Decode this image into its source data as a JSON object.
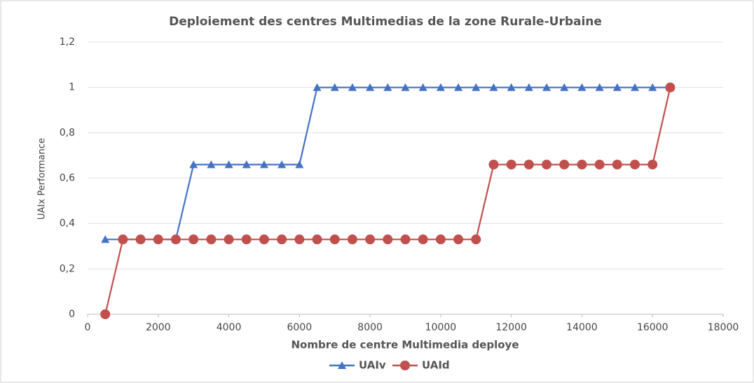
{
  "chart_data": {
    "type": "line",
    "title": "Deploiement des centres Multimedias de la zone Rurale-Urbaine",
    "xlabel": "Nombre de centre Multimedia deploye",
    "ylabel": "UAIx Performance",
    "x": [
      500,
      1000,
      1500,
      2000,
      2500,
      3000,
      3500,
      4000,
      4500,
      5000,
      5500,
      6000,
      6500,
      7000,
      7500,
      8000,
      8500,
      9000,
      9500,
      10000,
      10500,
      11000,
      11500,
      12000,
      12500,
      13000,
      13500,
      14000,
      14500,
      15000,
      15500,
      16000,
      16500
    ],
    "series": [
      {
        "name": "UAIv",
        "color": "#4472c4",
        "marker": "triangle",
        "values": [
          0.33,
          0.33,
          0.33,
          0.33,
          0.33,
          0.66,
          0.66,
          0.66,
          0.66,
          0.66,
          0.66,
          0.66,
          1,
          1,
          1,
          1,
          1,
          1,
          1,
          1,
          1,
          1,
          1,
          1,
          1,
          1,
          1,
          1,
          1,
          1,
          1,
          1,
          1
        ]
      },
      {
        "name": "UAId",
        "color": "#c0504d",
        "marker": "circle",
        "values": [
          0,
          0.33,
          0.33,
          0.33,
          0.33,
          0.33,
          0.33,
          0.33,
          0.33,
          0.33,
          0.33,
          0.33,
          0.33,
          0.33,
          0.33,
          0.33,
          0.33,
          0.33,
          0.33,
          0.33,
          0.33,
          0.33,
          0.66,
          0.66,
          0.66,
          0.66,
          0.66,
          0.66,
          0.66,
          0.66,
          0.66,
          0.66,
          1
        ]
      }
    ],
    "xlim": [
      0,
      18000
    ],
    "xticks": [
      0,
      2000,
      4000,
      6000,
      8000,
      10000,
      12000,
      14000,
      16000,
      18000
    ],
    "ylim": [
      0,
      1.2
    ],
    "yticks": [
      0,
      {
        "value": 0.2,
        "label": "0,2"
      },
      {
        "value": 0.4,
        "label": "0,4"
      },
      {
        "value": 0.6,
        "label": "0,6"
      },
      {
        "value": 0.8,
        "label": "0,8"
      },
      1,
      {
        "value": 1.2,
        "label": "1,2"
      }
    ],
    "grid": true,
    "legend": "bottom"
  }
}
